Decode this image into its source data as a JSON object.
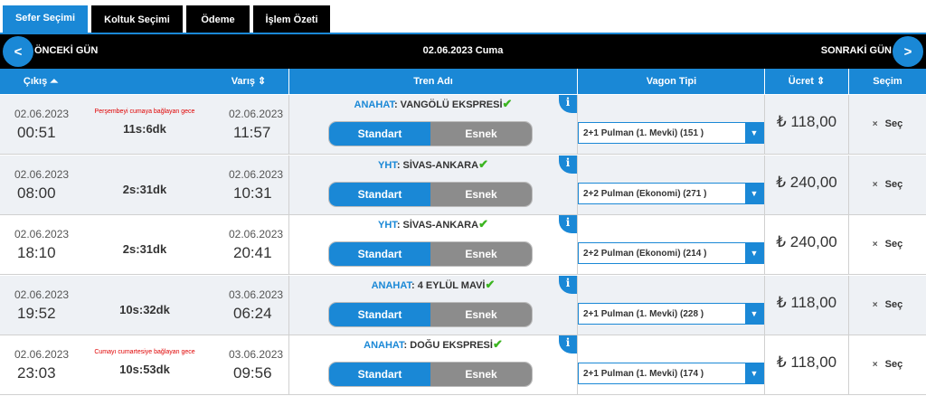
{
  "tabs": [
    "Sefer Seçimi",
    "Koltuk Seçimi",
    "Ödeme",
    "İşlem Özeti"
  ],
  "daynav": {
    "prev_arrow": "<",
    "prev": "ÖNCEKİ GÜN",
    "date": "02.06.2023 Cuma",
    "next": "SONRAKİ GÜN",
    "next_arrow": ">"
  },
  "headers": {
    "cikis": "Çıkış ⏶",
    "varis": "Varış ⇕",
    "tren": "Tren Adı",
    "vagon": "Vagon Tipi",
    "ucret": "Ücret ⇕",
    "secim": "Seçim"
  },
  "common": {
    "standart": "Standart",
    "esnek": "Esnek",
    "sec": "Seç",
    "sec_x": "×",
    "info": "i",
    "check": "✔",
    "arrow": "▼"
  },
  "rows": [
    {
      "dep_date": "02.06.2023",
      "dep_time": "00:51",
      "note": "Perşembeyi cumaya bağlayan gece",
      "duration": "11s:6dk",
      "arr_date": "02.06.2023",
      "arr_time": "11:57",
      "train_type": "ANAHAT",
      "train_name": ": VANGÖLÜ EKSPRESİ",
      "wagon": "2+1 Pulman (1. Mevki) (151 )",
      "price": "₺ 118,00"
    },
    {
      "dep_date": "02.06.2023",
      "dep_time": "08:00",
      "note": "",
      "duration": "2s:31dk",
      "arr_date": "02.06.2023",
      "arr_time": "10:31",
      "train_type": "YHT",
      "train_name": ": SİVAS-ANKARA",
      "wagon": "2+2 Pulman (Ekonomi) (271 )",
      "price": "₺ 240,00"
    },
    {
      "dep_date": "02.06.2023",
      "dep_time": "18:10",
      "note": "",
      "duration": "2s:31dk",
      "arr_date": "02.06.2023",
      "arr_time": "20:41",
      "train_type": "YHT",
      "train_name": ": SİVAS-ANKARA",
      "wagon": "2+2 Pulman (Ekonomi) (214 )",
      "price": "₺ 240,00"
    },
    {
      "dep_date": "02.06.2023",
      "dep_time": "19:52",
      "note": "",
      "duration": "10s:32dk",
      "arr_date": "03.06.2023",
      "arr_time": "06:24",
      "train_type": "ANAHAT",
      "train_name": ": 4 EYLÜL MAVİ",
      "wagon": "2+1 Pulman (1. Mevki) (228 )",
      "price": "₺ 118,00"
    },
    {
      "dep_date": "02.06.2023",
      "dep_time": "23:03",
      "note": "Cumayı cumartesiye bağlayan gece",
      "duration": "10s:53dk",
      "arr_date": "03.06.2023",
      "arr_time": "09:56",
      "train_type": "ANAHAT",
      "train_name": ": DOĞU EKSPRESİ",
      "wagon": "2+1 Pulman (1. Mevki) (174 )",
      "price": "₺ 118,00"
    }
  ],
  "colors": {
    "accent": "#1a88d6",
    "tab_inactive": "#000000",
    "toggle_off": "#8c8c8c",
    "note": "#e00000",
    "check": "#3cb521"
  }
}
